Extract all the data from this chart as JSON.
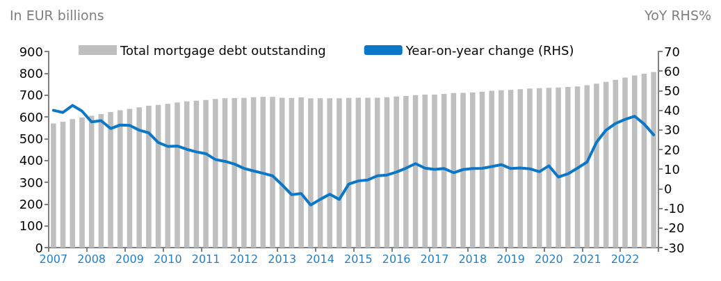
{
  "chart_data": {
    "type": "bar",
    "ylabel": "In EUR billions",
    "y2label": "YoY RHS%",
    "categories": [
      "2007",
      null,
      null,
      null,
      "2008",
      null,
      null,
      null,
      "2009",
      null,
      null,
      null,
      "2010",
      null,
      null,
      null,
      "2011",
      null,
      null,
      null,
      "2012",
      null,
      null,
      null,
      "2013",
      null,
      null,
      null,
      "2014",
      null,
      null,
      null,
      "2015",
      null,
      null,
      null,
      "2016",
      null,
      null,
      null,
      "2017",
      null,
      null,
      null,
      "2018",
      null,
      null,
      null,
      "2019",
      null,
      null,
      null,
      "2020",
      null,
      null,
      null,
      "2021",
      null,
      null,
      null,
      "2022",
      null,
      null,
      null
    ],
    "series": [
      {
        "name": "Total mortgage debt outstanding",
        "color": "#bfbfbf",
        "values": [
          570,
          578,
          590,
          598,
          605,
          613,
          622,
          630,
          637,
          644,
          651,
          655,
          660,
          666,
          671,
          674,
          677,
          682,
          685,
          686,
          687,
          690,
          692,
          692,
          688,
          687,
          689,
          685,
          685,
          685,
          685,
          687,
          688,
          688,
          688,
          690,
          693,
          696,
          700,
          702,
          702,
          705,
          709,
          710,
          712,
          716,
          720,
          722,
          724,
          727,
          730,
          732,
          733,
          735,
          737,
          740,
          745,
          752,
          760,
          770,
          780,
          790,
          798,
          806
        ]
      },
      {
        "name": "Year-on-year change (RHS)",
        "type": "line",
        "axis": "y2",
        "color": "#0a77c9",
        "values": [
          40.0,
          38.9,
          42.5,
          39.6,
          34.1,
          34.7,
          30.7,
          32.5,
          32.3,
          29.9,
          28.5,
          23.6,
          21.6,
          21.8,
          20.1,
          18.8,
          17.9,
          14.9,
          14.0,
          12.6,
          10.4,
          9.1,
          7.9,
          6.6,
          2.0,
          -3.0,
          -2.4,
          -8.3,
          -5.4,
          -2.8,
          -5.4,
          2.4,
          4.0,
          4.5,
          6.6,
          7.0,
          8.5,
          10.5,
          12.8,
          10.5,
          9.9,
          10.3,
          8.2,
          9.8,
          10.3,
          10.4,
          11.3,
          12.3,
          10.3,
          10.6,
          10.2,
          8.7,
          11.7,
          6.0,
          7.6,
          10.5,
          13.6,
          23.7,
          29.9,
          33.3,
          35.4,
          37.0,
          33.0,
          27.5
        ]
      }
    ],
    "ylim": [
      0,
      900
    ],
    "yticks": [
      0,
      100,
      200,
      300,
      400,
      500,
      600,
      700,
      800,
      900
    ],
    "y2lim": [
      -30,
      70
    ],
    "y2ticks": [
      -30,
      -20,
      -10,
      0,
      10,
      20,
      30,
      40,
      50,
      60,
      70
    ],
    "grid": false,
    "legend": "top",
    "marker": "none",
    "line_style": "solid"
  }
}
